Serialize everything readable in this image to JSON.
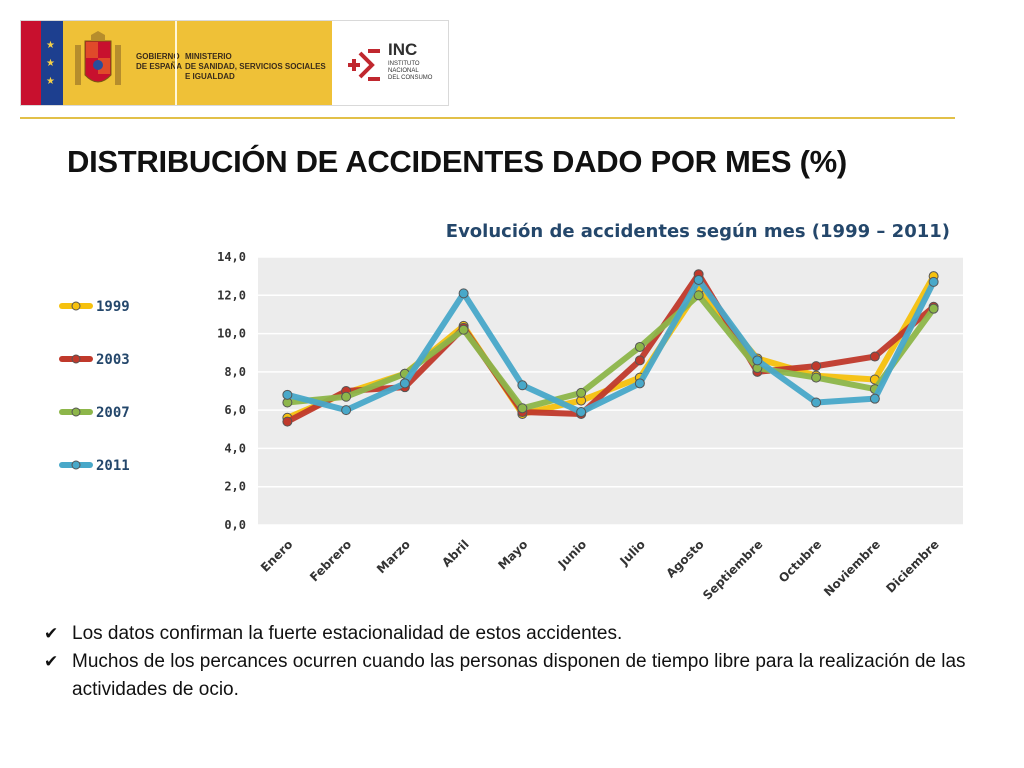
{
  "header": {
    "gov_line1": "GOBIERNO",
    "gov_line2": "DE ESPAÑA",
    "ministry_line1": "MINISTERIO",
    "ministry_line2": "DE SANIDAD, SERVICIOS SOCIALES",
    "ministry_line3": "E IGUALDAD",
    "inc_title": "INC",
    "inc_line1": "INSTITUTO",
    "inc_line2": "NACIONAL",
    "inc_line3": "DEL CONSUMO",
    "coat_icon": "coat-of-arms-icon",
    "inc_icon": "inc-logo-icon",
    "colors": {
      "banner": "#efc137",
      "rule": "#e2c048"
    }
  },
  "page_title": "DISTRIBUCIÓN DE ACCIDENTES DADO POR MES (%)",
  "chart_data": {
    "type": "line",
    "title": "Evolución de accidentes según mes (1999 – 2011)",
    "xlabel": "",
    "ylabel": "",
    "categories": [
      "Enero",
      "Febrero",
      "Marzo",
      "Abril",
      "Mayo",
      "Junio",
      "Julio",
      "Agosto",
      "Septiembre",
      "Octubre",
      "Noviembre",
      "Diciembre"
    ],
    "ylim": [
      0,
      14
    ],
    "yticks": [
      "0,0",
      "2,0",
      "4,0",
      "6,0",
      "8,0",
      "10,0",
      "12,0",
      "14,0"
    ],
    "grid": true,
    "legend_position": "left",
    "series": [
      {
        "name": "1999",
        "color": "#f6c10e",
        "values": [
          5.6,
          6.9,
          7.9,
          10.4,
          5.8,
          6.5,
          7.7,
          12.3,
          8.7,
          7.8,
          7.6,
          13.0
        ]
      },
      {
        "name": "2003",
        "color": "#c0392b",
        "values": [
          5.4,
          7.0,
          7.2,
          10.3,
          5.9,
          5.8,
          8.6,
          13.1,
          8.0,
          8.3,
          8.8,
          11.4
        ]
      },
      {
        "name": "2007",
        "color": "#8db64a",
        "values": [
          6.4,
          6.7,
          7.9,
          10.2,
          6.1,
          6.9,
          9.3,
          12.0,
          8.2,
          7.7,
          7.1,
          11.3
        ]
      },
      {
        "name": "2011",
        "color": "#48a8c9",
        "values": [
          6.8,
          6.0,
          7.4,
          12.1,
          7.3,
          5.9,
          7.4,
          12.8,
          8.6,
          6.4,
          6.6,
          12.7
        ]
      }
    ]
  },
  "bullets": [
    "Los datos  confirman la fuerte estacionalidad de estos accidentes.",
    "Muchos de los percances ocurren cuando las personas disponen de tiempo libre para la realización de las actividades de ocio."
  ],
  "bullet_icon": "checkmark-icon"
}
